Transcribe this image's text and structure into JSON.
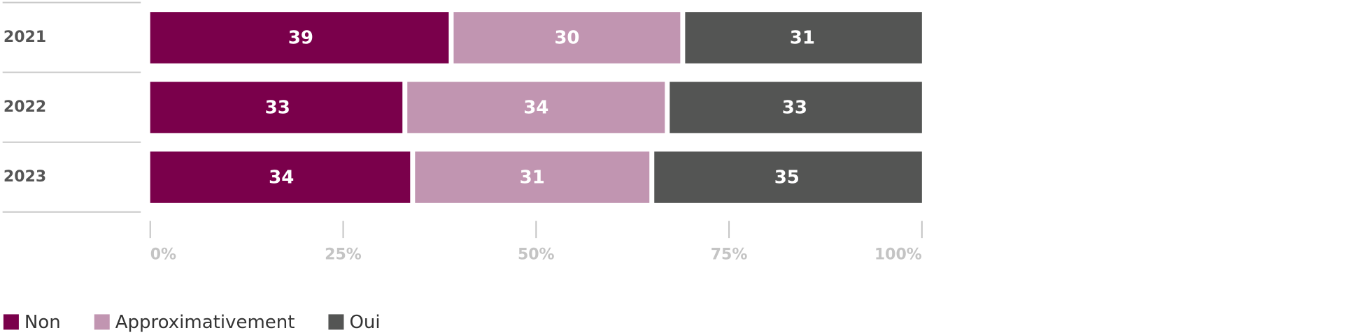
{
  "chart_data": {
    "type": "stacked-bar-horizontal",
    "categories": [
      "2021",
      "2022",
      "2023"
    ],
    "series": [
      {
        "name": "Non",
        "color": "#7a004b",
        "values": [
          39,
          33,
          34
        ]
      },
      {
        "name": "Approximativement",
        "color": "#c195b1",
        "values": [
          30,
          34,
          31
        ]
      },
      {
        "name": "Oui",
        "color": "#545554",
        "values": [
          31,
          33,
          35
        ]
      }
    ],
    "xlim": [
      0,
      100
    ],
    "xticks": [
      {
        "value": 0,
        "label": "0%"
      },
      {
        "value": 25,
        "label": "25%"
      },
      {
        "value": 50,
        "label": "50%"
      },
      {
        "value": 75,
        "label": "75%"
      },
      {
        "value": 100,
        "label": "100%"
      }
    ],
    "legend": "bottom-left"
  }
}
